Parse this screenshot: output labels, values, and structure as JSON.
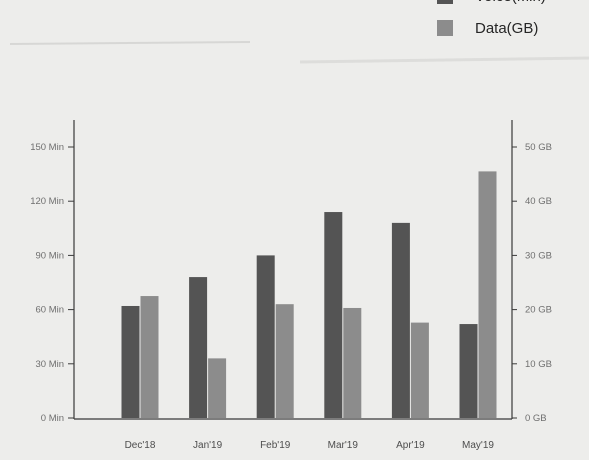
{
  "chart_data": {
    "type": "bar",
    "categories": [
      "Dec'18",
      "Jan'19",
      "Feb'19",
      "Mar'19",
      "Apr'19",
      "May'19"
    ],
    "series": [
      {
        "name": "Voice(Min)",
        "axis": "left",
        "color": "#545454",
        "values": [
          62,
          78,
          90,
          114,
          108,
          52
        ]
      },
      {
        "name": "Data(GB)",
        "axis": "right",
        "color": "#8c8c8c",
        "values": [
          22.5,
          11,
          21,
          20.3,
          17.6,
          45.5
        ]
      }
    ],
    "y_left": {
      "ylim": [
        0,
        150
      ],
      "ticks": [
        "0 Min",
        "30 Min",
        "60 Min",
        "90 Min",
        "120 Min",
        "150 Min"
      ]
    },
    "y_right": {
      "ylim": [
        0,
        50
      ],
      "ticks": [
        "0 GB",
        "10 GB",
        "20 GB",
        "30 GB",
        "40 GB",
        "50 GB"
      ]
    },
    "legend_position": "top-right",
    "grid": false
  }
}
